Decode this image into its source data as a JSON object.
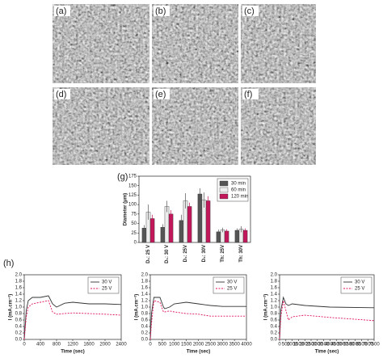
{
  "image_labels": [
    "(a)",
    "(b)",
    "(c)",
    "(d)",
    "(e)",
    "(f)"
  ],
  "panel_labels": [
    "(g)",
    "(h)"
  ],
  "chart_data": [
    {
      "type": "bar",
      "ylabel": "Diameter (μm)",
      "categories": [
        "D₁: 25 V",
        "D₁: 30 V",
        "D₂: 25V",
        "D₂: 30V",
        "Th: 25V",
        "Th: 30V"
      ],
      "series": [
        {
          "name": "30 min",
          "color": "#555555",
          "values": [
            38,
            40,
            58,
            128,
            28,
            32
          ],
          "errors": [
            8,
            8,
            15,
            15,
            6,
            5
          ]
        },
        {
          "name": "60 min",
          "color": "#eeeeee",
          "values": [
            80,
            95,
            110,
            112,
            33,
            35
          ],
          "errors": [
            20,
            15,
            20,
            20,
            6,
            8
          ]
        },
        {
          "name": "120 min",
          "color": "#c2185b",
          "values": [
            63,
            75,
            95,
            110,
            30,
            32
          ],
          "errors": [
            10,
            10,
            10,
            12,
            5,
            5
          ]
        }
      ],
      "ylim": [
        0,
        175
      ],
      "yticks": [
        0,
        25,
        50,
        75,
        100,
        125,
        150,
        175
      ],
      "legend": "upper right"
    },
    {
      "type": "line",
      "ylabel": "I (mA.cm⁻²)",
      "xlabel": "Time (sec)",
      "x": [
        0,
        50,
        100,
        200,
        400,
        600,
        700,
        800,
        1000,
        1200,
        1600,
        2000,
        2400
      ],
      "series": [
        {
          "name": "30 V",
          "color": "#333333",
          "linestyle": "solid",
          "values": [
            0,
            0.9,
            1.2,
            1.3,
            1.3,
            1.35,
            1.1,
            1.0,
            1.12,
            1.15,
            1.1,
            1.1,
            1.08
          ]
        },
        {
          "name": "25 V",
          "color": "#e0115f",
          "linestyle": "dashed",
          "values": [
            0,
            0.7,
            1.0,
            1.1,
            1.15,
            1.2,
            0.85,
            0.78,
            0.8,
            0.82,
            0.8,
            0.78,
            0.75
          ]
        }
      ],
      "xlim": [
        0,
        2400
      ],
      "xticks": [
        0,
        400,
        800,
        1200,
        1600,
        2000,
        2400
      ],
      "ylim": [
        0,
        2.0
      ],
      "yticks": [
        {
          "value": 0,
          "label": "0.0"
        },
        0.2,
        0.4,
        0.6,
        0.8,
        {
          "value": 1,
          "label": "1.0"
        },
        1.2,
        1.4,
        1.6,
        1.8,
        {
          "value": 2,
          "label": "2.0"
        }
      ],
      "legend": "upper right"
    },
    {
      "type": "line",
      "ylabel": "I (mA.cm⁻²)",
      "xlabel": "Time (sec)",
      "x": [
        0,
        50,
        150,
        400,
        550,
        600,
        800,
        1000,
        1500,
        2000,
        2500,
        3000,
        4000
      ],
      "series": [
        {
          "name": "30 V",
          "color": "#333333",
          "linestyle": "solid",
          "values": [
            0,
            0.8,
            1.3,
            1.3,
            1.0,
            0.95,
            1.0,
            1.1,
            1.15,
            1.1,
            1.05,
            1.02,
            1.02
          ]
        },
        {
          "name": "25 V",
          "color": "#e0115f",
          "linestyle": "dashed",
          "values": [
            0,
            0.5,
            1.2,
            1.15,
            0.85,
            0.85,
            0.88,
            0.85,
            0.8,
            0.78,
            0.72,
            0.72,
            0.72
          ]
        }
      ],
      "xlim": [
        0,
        4000
      ],
      "xticks": [
        0,
        500,
        1000,
        1500,
        2000,
        2500,
        3000,
        3500,
        4000
      ],
      "ylim": [
        0,
        2.0
      ],
      "yticks": [
        {
          "value": 0,
          "label": "0.0"
        },
        0.2,
        0.4,
        0.6,
        0.8,
        {
          "value": 1,
          "label": "1.0"
        },
        1.2,
        1.4,
        1.6,
        1.8,
        {
          "value": 2,
          "label": "2.0"
        }
      ],
      "legend": "upper right"
    },
    {
      "type": "line",
      "ylabel": "I (mA.cm⁻²)",
      "xlabel": "Time (sec)",
      "x": [
        0,
        100,
        300,
        500,
        700,
        1000,
        2000,
        4000,
        7500
      ],
      "series": [
        {
          "name": "30 V",
          "color": "#333333",
          "linestyle": "solid",
          "values": [
            0,
            0.9,
            1.3,
            1.1,
            1.05,
            1.1,
            1.05,
            1.0,
            0.98
          ]
        },
        {
          "name": "25 V",
          "color": "#e0115f",
          "linestyle": "dashed",
          "values": [
            0,
            0.7,
            1.2,
            0.9,
            0.6,
            0.7,
            0.75,
            0.68,
            0.58
          ]
        }
      ],
      "xlim": [
        0,
        7500
      ],
      "xticks": [
        0,
        500,
        1000,
        1500,
        2000,
        2500,
        3000,
        3500,
        4000,
        4500,
        5000,
        5500,
        6000,
        6500,
        7000,
        7500
      ],
      "ylim": [
        0,
        2.0
      ],
      "yticks": [
        {
          "value": 0,
          "label": "0.0"
        },
        0.2,
        0.4,
        0.6,
        0.8,
        {
          "value": 1,
          "label": "1.0"
        },
        1.2,
        1.4,
        1.6,
        1.8,
        {
          "value": 2,
          "label": "2.0"
        }
      ],
      "legend": "upper right"
    }
  ]
}
